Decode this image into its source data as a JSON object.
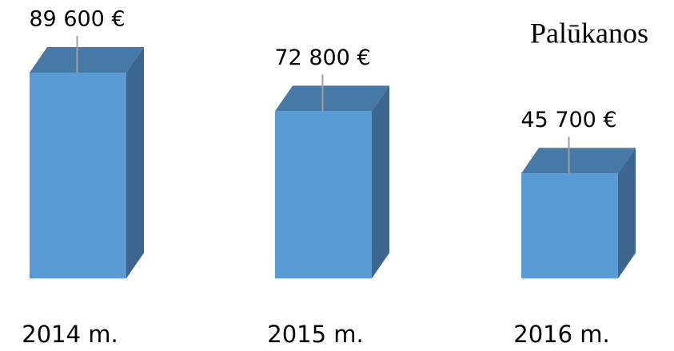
{
  "chart_data": {
    "type": "bar3d",
    "title": "Palūkanos",
    "categories": [
      "2014 m.",
      "2015 m.",
      "2016 m."
    ],
    "values": [
      89600,
      72800,
      45700
    ],
    "value_labels": [
      "89 600 €",
      "72 800 €",
      "45 700 €"
    ],
    "color": "#5b9bd5"
  }
}
